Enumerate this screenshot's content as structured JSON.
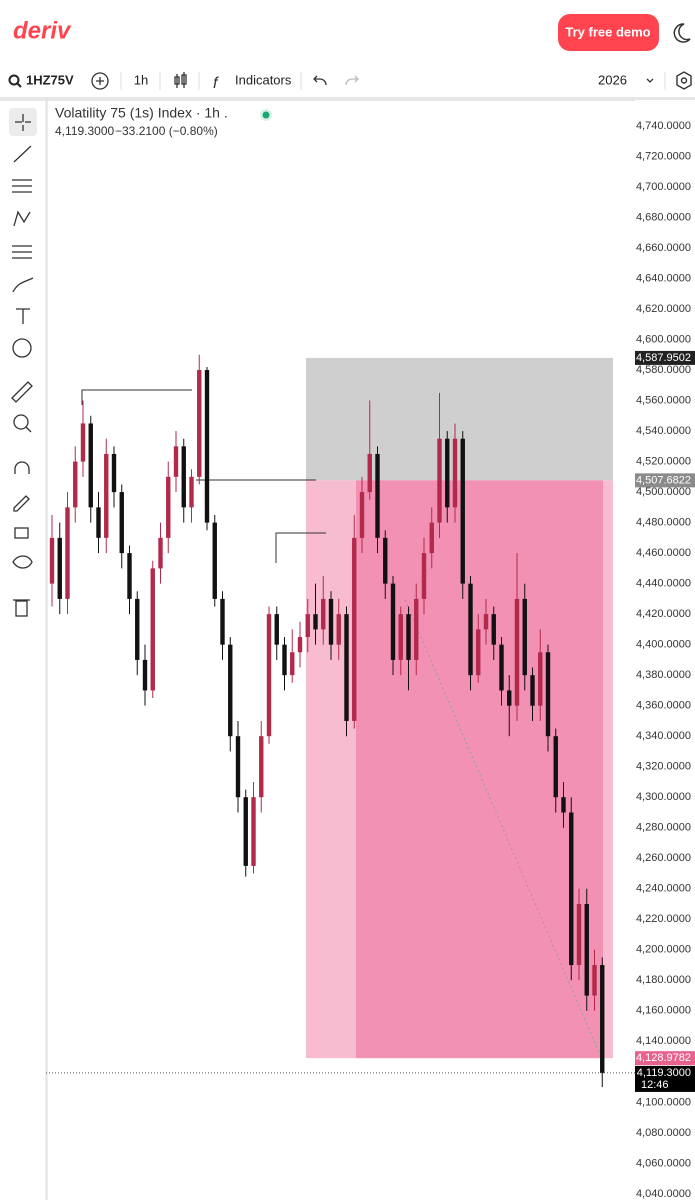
{
  "header": {
    "logo": "deriv",
    "demo_button": "Try free demo"
  },
  "toolbar": {
    "symbol": "1HZ75V",
    "interval": "1h",
    "indicators": "Indicators",
    "year": "2026"
  },
  "chart_data": {
    "type": "candlestick",
    "title": "Volatility 75 (1s) Index · 1h .",
    "last_price": "4,119.3000",
    "change": "−33.2100 (−0.80%)",
    "up_color": "#b22a4a",
    "down_color": "#111111",
    "ylim": [
      4036,
      4757
    ],
    "yticks": [
      {
        "value": 4740,
        "label": "4,740.0000"
      },
      {
        "value": 4720,
        "label": "4,720.0000"
      },
      {
        "value": 4700,
        "label": "4,700.0000"
      },
      {
        "value": 4680,
        "label": "4,680.0000"
      },
      {
        "value": 4660,
        "label": "4,660.0000"
      },
      {
        "value": 4640,
        "label": "4,640.0000"
      },
      {
        "value": 4620,
        "label": "4,620.0000"
      },
      {
        "value": 4600,
        "label": "4,600.0000"
      },
      {
        "value": 4580,
        "label": "4,580.0000"
      },
      {
        "value": 4560,
        "label": "4,560.0000"
      },
      {
        "value": 4540,
        "label": "4,540.0000"
      },
      {
        "value": 4520,
        "label": "4,520.0000"
      },
      {
        "value": 4500,
        "label": "4,500.0000"
      },
      {
        "value": 4480,
        "label": "4,480.0000"
      },
      {
        "value": 4460,
        "label": "4,460.0000"
      },
      {
        "value": 4440,
        "label": "4,440.0000"
      },
      {
        "value": 4420,
        "label": "4,420.0000"
      },
      {
        "value": 4400,
        "label": "4,400.0000"
      },
      {
        "value": 4380,
        "label": "4,380.0000"
      },
      {
        "value": 4360,
        "label": "4,360.0000"
      },
      {
        "value": 4340,
        "label": "4,340.0000"
      },
      {
        "value": 4320,
        "label": "4,320.0000"
      },
      {
        "value": 4300,
        "label": "4,300.0000"
      },
      {
        "value": 4280,
        "label": "4,280.0000"
      },
      {
        "value": 4260,
        "label": "4,260.0000"
      },
      {
        "value": 4240,
        "label": "4,240.0000"
      },
      {
        "value": 4220,
        "label": "4,220.0000"
      },
      {
        "value": 4200,
        "label": "4,200.0000"
      },
      {
        "value": 4180,
        "label": "4,180.0000"
      },
      {
        "value": 4160,
        "label": "4,160.0000"
      },
      {
        "value": 4140,
        "label": "4,140.0000"
      },
      {
        "value": 4100,
        "label": "4,100.0000"
      },
      {
        "value": 4080,
        "label": "4,080.0000"
      },
      {
        "value": 4060,
        "label": "4,060.0000"
      },
      {
        "value": 4040,
        "label": "4,040.0000"
      }
    ],
    "open": [
      4440,
      4470,
      4430,
      4490,
      4520,
      4545,
      4490,
      4470,
      4525,
      4500,
      4460,
      4430,
      4390,
      4370,
      4450,
      4470,
      4510,
      4530,
      4490,
      4510,
      4580,
      4480,
      4430,
      4400,
      4340,
      4300,
      4255,
      4300,
      4340,
      4420,
      4400,
      4380,
      4395,
      4405,
      4420,
      4410,
      4430,
      4400,
      4420,
      4350,
      4470,
      4500,
      4525,
      4470,
      4440,
      4390,
      4420,
      4390,
      4430,
      4460,
      4480,
      4535,
      4490,
      4535,
      4440,
      4380,
      4410,
      4420,
      4400,
      4370,
      4360,
      4430,
      4380,
      4360,
      4395,
      4340,
      4300,
      4290,
      4190,
      4230,
      4170,
      4190
    ],
    "high": [
      4485,
      4480,
      4500,
      4530,
      4560,
      4550,
      4500,
      4535,
      4530,
      4505,
      4465,
      4435,
      4400,
      4455,
      4480,
      4520,
      4540,
      4535,
      4515,
      4590,
      4582,
      4485,
      4435,
      4405,
      4350,
      4305,
      4310,
      4350,
      4425,
      4425,
      4405,
      4410,
      4415,
      4430,
      4440,
      4445,
      4435,
      4430,
      4425,
      4485,
      4510,
      4560,
      4530,
      4475,
      4445,
      4425,
      4425,
      4440,
      4470,
      4490,
      4565,
      4540,
      4545,
      4540,
      4445,
      4420,
      4430,
      4425,
      4405,
      4380,
      4460,
      4440,
      4385,
      4410,
      4400,
      4345,
      4310,
      4300,
      4240,
      4240,
      4200,
      4195
    ],
    "low": [
      4425,
      4420,
      4420,
      4480,
      4510,
      4480,
      4460,
      4460,
      4490,
      4450,
      4420,
      4380,
      4360,
      4365,
      4440,
      4460,
      4500,
      4480,
      4480,
      4505,
      4475,
      4425,
      4390,
      4330,
      4290,
      4248,
      4250,
      4290,
      4335,
      4390,
      4370,
      4375,
      4385,
      4395,
      4400,
      4400,
      4390,
      4390,
      4340,
      4345,
      4460,
      4495,
      4460,
      4430,
      4380,
      4380,
      4370,
      4380,
      4420,
      4450,
      4470,
      4480,
      4480,
      4430,
      4370,
      4375,
      4400,
      4390,
      4360,
      4340,
      4350,
      4370,
      4350,
      4350,
      4330,
      4290,
      4280,
      4180,
      4180,
      4160,
      4160,
      4110
    ],
    "close": [
      4470,
      4430,
      4490,
      4520,
      4545,
      4490,
      4470,
      4525,
      4500,
      4460,
      4430,
      4390,
      4370,
      4450,
      4470,
      4510,
      4530,
      4490,
      4510,
      4580,
      4480,
      4430,
      4400,
      4340,
      4300,
      4255,
      4300,
      4340,
      4420,
      4400,
      4380,
      4395,
      4405,
      4420,
      4410,
      4430,
      4400,
      4420,
      4350,
      4470,
      4500,
      4525,
      4470,
      4440,
      4390,
      4420,
      4390,
      4430,
      4460,
      4480,
      4535,
      4490,
      4535,
      4440,
      4380,
      4410,
      4420,
      4400,
      4370,
      4360,
      4430,
      4380,
      4360,
      4395,
      4340,
      4300,
      4290,
      4190,
      4230,
      4170,
      4190,
      4119.3
    ],
    "markers": [
      {
        "value": 4587.9502,
        "label": "4,587.9502",
        "color": "#222222"
      },
      {
        "value": 4507.6822,
        "label": "4,507.6822",
        "color": "#8a8a8a"
      },
      {
        "value": 4128.9782,
        "label": "4,128.9782",
        "color": "#e8628e"
      },
      {
        "value": 4119.3,
        "label": "4,119.3000",
        "color": "#000000"
      }
    ],
    "countdown": "12:46"
  }
}
